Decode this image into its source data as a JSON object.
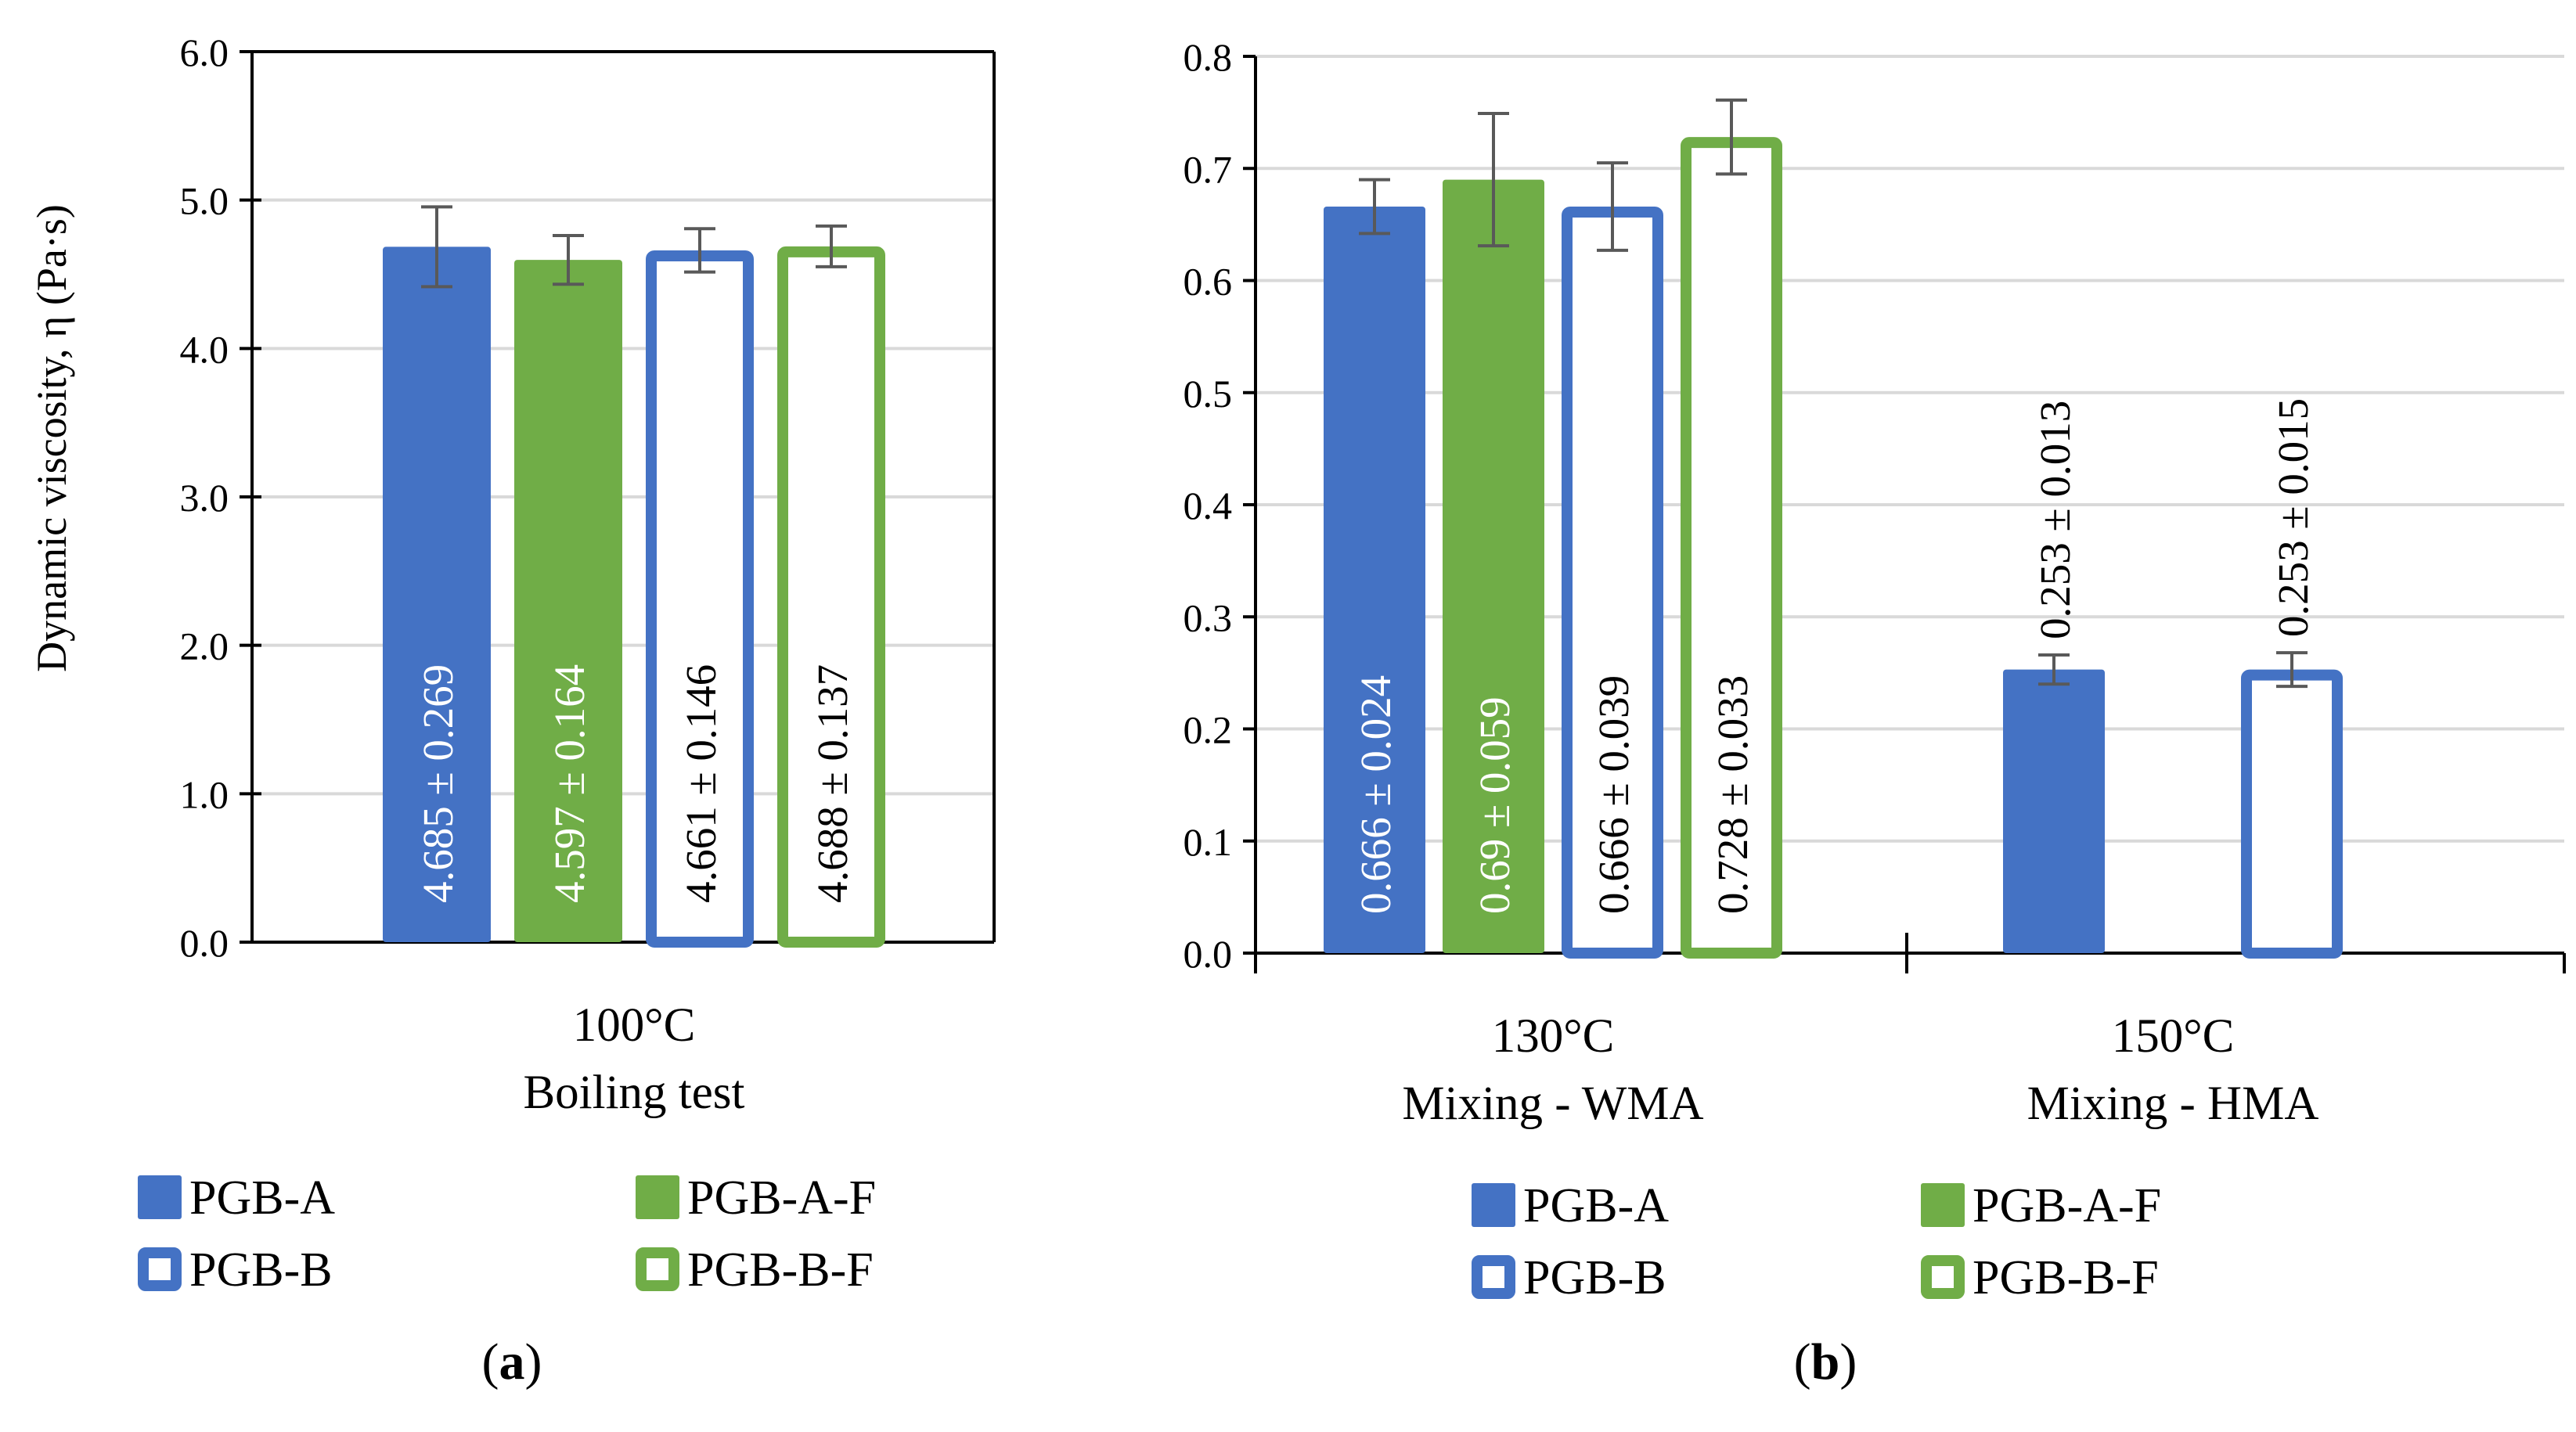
{
  "colors": {
    "blue": "#4472C4",
    "green": "#70AD47",
    "grid": "#D9D9D9",
    "axis": "#000000",
    "errorbar": "#595959",
    "label_dark": "#000000",
    "label_light": "#FFFFFF"
  },
  "chart_data": [
    {
      "id": "a",
      "type": "bar",
      "panel_label": "a",
      "ylabel": "Dynamic viscosity, η (Pa·s)",
      "ylim": [
        0,
        6
      ],
      "yticks": [
        "0.0",
        "1.0",
        "2.0",
        "3.0",
        "4.0",
        "5.0",
        "6.0"
      ],
      "ytick_values": [
        0,
        1,
        2,
        3,
        4,
        5,
        6
      ],
      "grid": true,
      "groups": [
        {
          "label_line1": "100°C",
          "label_line2": "Boiling test",
          "bars": [
            {
              "name": "PGB-A",
              "value": 4.685,
              "error": 0.269,
              "label": "4.685 ± 0.269",
              "style": "filled",
              "color": "#4472C4"
            },
            {
              "name": "PGB-A-F",
              "value": 4.597,
              "error": 0.164,
              "label": "4.597 ± 0.164",
              "style": "filled",
              "color": "#70AD47"
            },
            {
              "name": "PGB-B",
              "value": 4.661,
              "error": 0.146,
              "label": "4.661 ± 0.146",
              "style": "outline",
              "color": "#4472C4"
            },
            {
              "name": "PGB-B-F",
              "value": 4.688,
              "error": 0.137,
              "label": "4.688 ± 0.137",
              "style": "outline",
              "color": "#70AD47"
            }
          ]
        }
      ],
      "legend": [
        {
          "name": "PGB-A",
          "style": "filled",
          "color": "#4472C4"
        },
        {
          "name": "PGB-A-F",
          "style": "filled",
          "color": "#70AD47"
        },
        {
          "name": "PGB-B",
          "style": "outline",
          "color": "#4472C4"
        },
        {
          "name": "PGB-B-F",
          "style": "outline",
          "color": "#70AD47"
        }
      ],
      "legend_position": "bottom"
    },
    {
      "id": "b",
      "type": "bar",
      "panel_label": "b",
      "ylabel": "",
      "ylim": [
        0,
        0.8
      ],
      "yticks": [
        "0.0",
        "0.1",
        "0.2",
        "0.3",
        "0.4",
        "0.5",
        "0.6",
        "0.7",
        "0.8"
      ],
      "ytick_values": [
        0,
        0.1,
        0.2,
        0.3,
        0.4,
        0.5,
        0.6,
        0.7,
        0.8
      ],
      "grid": true,
      "groups": [
        {
          "label_line1": "130°C",
          "label_line2": "Mixing  -  WMA",
          "bars": [
            {
              "name": "PGB-A",
              "value": 0.666,
              "error": 0.024,
              "label": "0.666 ± 0.024",
              "style": "filled",
              "color": "#4472C4"
            },
            {
              "name": "PGB-A-F",
              "value": 0.69,
              "error": 0.059,
              "label": "0.69 ± 0.059",
              "style": "filled",
              "color": "#70AD47"
            },
            {
              "name": "PGB-B",
              "value": 0.666,
              "error": 0.039,
              "label": "0.666 ± 0.039",
              "style": "outline",
              "color": "#4472C4"
            },
            {
              "name": "PGB-B-F",
              "value": 0.728,
              "error": 0.033,
              "label": "0.728 ± 0.033",
              "style": "outline",
              "color": "#70AD47"
            }
          ]
        },
        {
          "label_line1": "150°C",
          "label_line2": "Mixing - HMA",
          "bars": [
            {
              "name": "PGB-A",
              "value": 0.253,
              "error": 0.013,
              "label": "0.253 ± 0.013",
              "style": "filled",
              "color": "#4472C4"
            },
            {
              "name": "PGB-B",
              "value": 0.253,
              "error": 0.015,
              "label": "0.253 ± 0.015",
              "style": "outline",
              "color": "#4472C4"
            }
          ]
        }
      ],
      "legend": [
        {
          "name": "PGB-A",
          "style": "filled",
          "color": "#4472C4"
        },
        {
          "name": "PGB-A-F",
          "style": "filled",
          "color": "#70AD47"
        },
        {
          "name": "PGB-B",
          "style": "outline",
          "color": "#4472C4"
        },
        {
          "name": "PGB-B-F",
          "style": "outline",
          "color": "#70AD47"
        }
      ],
      "legend_position": "bottom"
    }
  ]
}
